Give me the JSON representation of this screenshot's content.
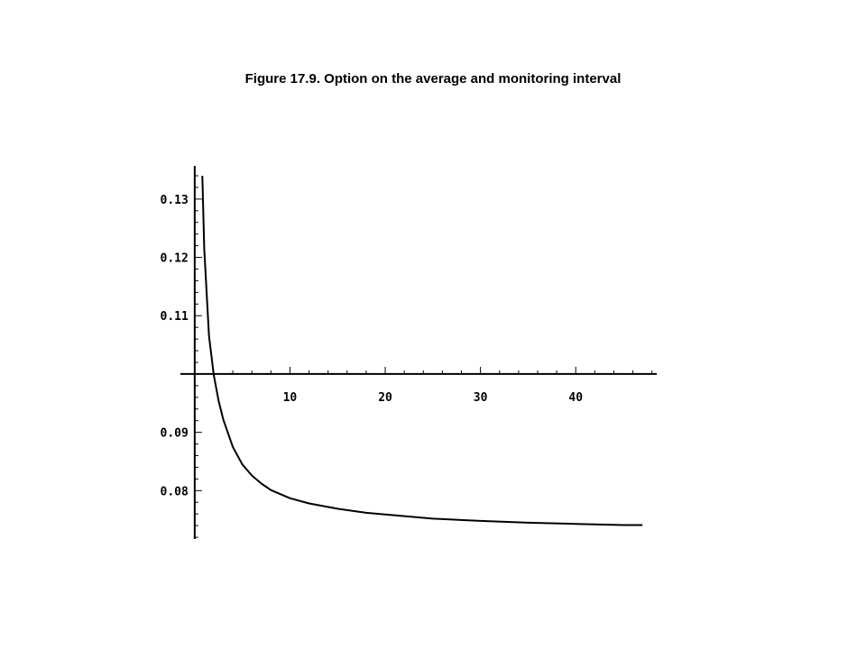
{
  "chart_data": {
    "type": "line",
    "title": "Figure 17.9. Option on the average and monitoring interval",
    "xlabel": "",
    "ylabel": "",
    "x_ticks": [
      10,
      20,
      30,
      40
    ],
    "y_ticks": [
      0.08,
      0.09,
      0.11,
      0.12,
      0.13
    ],
    "y_tick_labels": [
      "0.08",
      "0.09",
      "0.11",
      "0.12",
      "0.13"
    ],
    "xlim": [
      -1.5,
      48.5
    ],
    "ylim": [
      0.0717,
      0.1357
    ],
    "axis_crossing_y": 0.1,
    "grid": false,
    "legend": "none",
    "line_color": "#000000",
    "series": [
      {
        "x": [
          0.8,
          1,
          1.5,
          2,
          2.5,
          3,
          4,
          5,
          6,
          7,
          8,
          10,
          12,
          15,
          18,
          20,
          25,
          30,
          35,
          40,
          45,
          47
        ],
        "values": [
          0.134,
          0.1215,
          0.1065,
          0.0998,
          0.0955,
          0.0922,
          0.0875,
          0.0845,
          0.0826,
          0.0812,
          0.0801,
          0.0787,
          0.0778,
          0.0769,
          0.0762,
          0.0759,
          0.0752,
          0.0748,
          0.0745,
          0.0743,
          0.0741,
          0.0741
        ]
      }
    ]
  }
}
